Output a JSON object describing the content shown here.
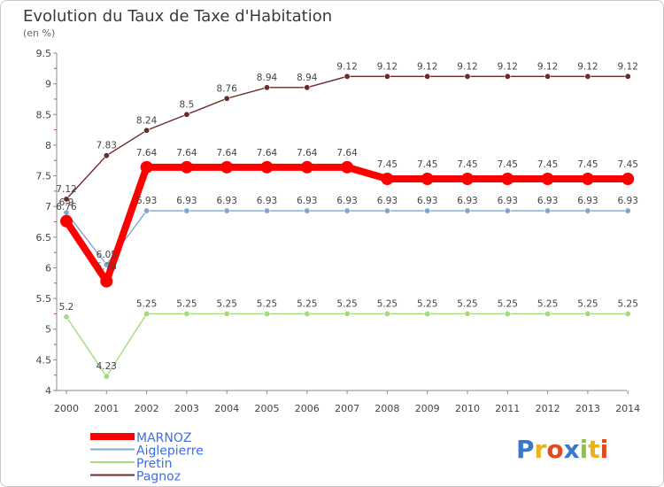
{
  "chart_data": {
    "type": "line",
    "title": "Evolution du Taux de Taxe d'Habitation",
    "subtitle": "(en %)",
    "xlabel": "",
    "ylabel": "",
    "x": [
      "2000",
      "2001",
      "2002",
      "2003",
      "2004",
      "2005",
      "2006",
      "2007",
      "2008",
      "2009",
      "2010",
      "2011",
      "2012",
      "2013",
      "2014"
    ],
    "ylim": [
      4,
      9.5
    ],
    "yticks": [
      "4",
      "4.5",
      "5",
      "5.5",
      "6",
      "6.5",
      "7",
      "7.5",
      "8",
      "8.5",
      "9",
      "9.5"
    ],
    "grid": false,
    "legend_position": "bottom-left",
    "series": [
      {
        "name": "Pagnoz",
        "color": "#6b2a2a",
        "label_color": "#444444",
        "weight": "thin",
        "values": [
          7.12,
          7.83,
          8.24,
          8.5,
          8.76,
          8.94,
          8.94,
          9.12,
          9.12,
          9.12,
          9.12,
          9.12,
          9.12,
          9.12,
          9.12
        ],
        "labels": [
          "7.12",
          "7.83",
          "8.24",
          "8.5",
          "8.76",
          "8.94",
          "8.94",
          "9.12",
          "9.12",
          "9.12",
          "9.12",
          "9.12",
          "9.12",
          "9.12",
          "9.12"
        ]
      },
      {
        "name": "Aiglepierre",
        "color": "#7fa6cf",
        "label_color": "#444444",
        "weight": "thin",
        "values": [
          6.9,
          6.05,
          6.93,
          6.93,
          6.93,
          6.93,
          6.93,
          6.93,
          6.93,
          6.93,
          6.93,
          6.93,
          6.93,
          6.93,
          6.93
        ],
        "labels": [
          "6.9",
          "6.05",
          "6.93",
          "6.93",
          "6.93",
          "6.93",
          "6.93",
          "6.93",
          "6.93",
          "6.93",
          "6.93",
          "6.93",
          "6.93",
          "6.93",
          "6.93"
        ]
      },
      {
        "name": "Pretin",
        "color": "#a6d97a",
        "label_color": "#444444",
        "weight": "thin",
        "values": [
          5.2,
          4.23,
          5.25,
          5.25,
          5.25,
          5.25,
          5.25,
          5.25,
          5.25,
          5.25,
          5.25,
          5.25,
          5.25,
          5.25,
          5.25
        ],
        "labels": [
          "5.2",
          "4.23",
          "5.25",
          "5.25",
          "5.25",
          "5.25",
          "5.25",
          "5.25",
          "5.25",
          "5.25",
          "5.25",
          "5.25",
          "5.25",
          "5.25",
          "5.25"
        ]
      },
      {
        "name": "MARNOZ",
        "color": "#ff0000",
        "label_color": "#444444",
        "weight": "thick",
        "values": [
          6.76,
          5.78,
          7.64,
          7.64,
          7.64,
          7.64,
          7.64,
          7.64,
          7.45,
          7.45,
          7.45,
          7.45,
          7.45,
          7.45,
          7.45
        ],
        "labels": [
          "6.76",
          "5.78",
          "7.64",
          "7.64",
          "7.64",
          "7.64",
          "7.64",
          "7.64",
          "7.45",
          "7.45",
          "7.45",
          "7.45",
          "7.45",
          "7.45",
          "7.45"
        ]
      }
    ],
    "legend": [
      {
        "name": "MARNOZ",
        "color": "#ff0000",
        "text_color": "#3c6ee6"
      },
      {
        "name": "Aiglepierre",
        "color": "#7fa6cf",
        "text_color": "#3c6ee6"
      },
      {
        "name": "Pretin",
        "color": "#a6d97a",
        "text_color": "#3c6ee6"
      },
      {
        "name": "Pagnoz",
        "color": "#6b2a2a",
        "text_color": "#3c6ee6"
      }
    ]
  },
  "logo": {
    "text": "Proxiti",
    "letters": [
      {
        "ch": "P",
        "color": "#3a78c8"
      },
      {
        "ch": "r",
        "color": "#e8b21a"
      },
      {
        "ch": "o",
        "color": "#e04a1e"
      },
      {
        "ch": "x",
        "color": "#3a78c8"
      },
      {
        "ch": "i",
        "color": "#8cc63f"
      },
      {
        "ch": "t",
        "color": "#e8b21a"
      },
      {
        "ch": "i",
        "color": "#e04a1e"
      }
    ]
  }
}
